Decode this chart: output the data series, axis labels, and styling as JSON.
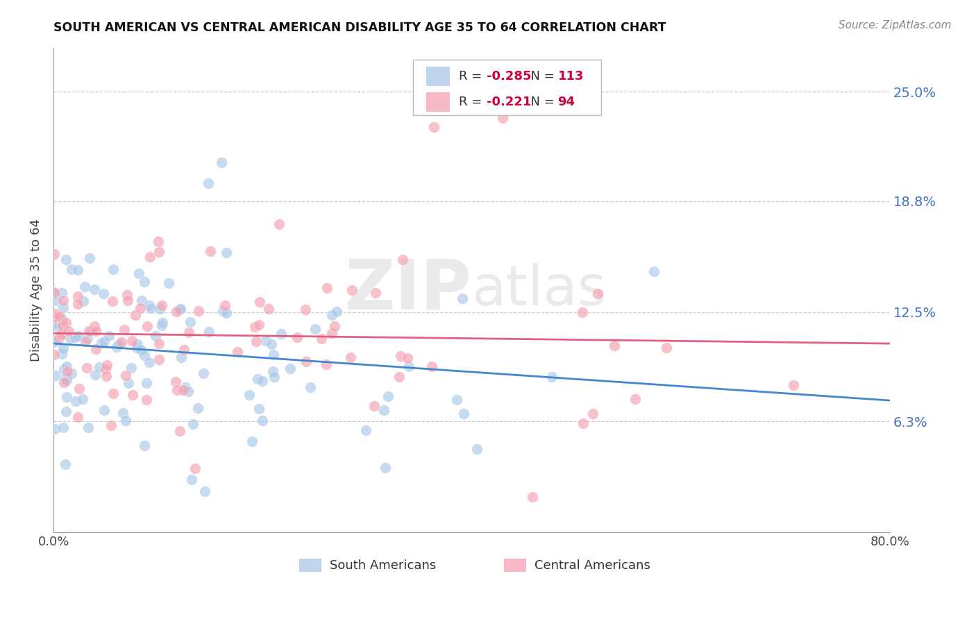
{
  "title": "SOUTH AMERICAN VS CENTRAL AMERICAN DISABILITY AGE 35 TO 64 CORRELATION CHART",
  "source": "Source: ZipAtlas.com",
  "ylabel": "Disability Age 35 to 64",
  "ytick_labels": [
    "6.3%",
    "12.5%",
    "18.8%",
    "25.0%"
  ],
  "ytick_values": [
    0.063,
    0.125,
    0.188,
    0.25
  ],
  "xlim": [
    0.0,
    0.8
  ],
  "ylim": [
    0.0,
    0.275
  ],
  "south_american_color": "#a8c8e8",
  "central_american_color": "#f4a0b0",
  "south_american_line_color": "#4488cc",
  "central_american_line_color": "#e06080",
  "south_american_R": -0.285,
  "south_american_N": 113,
  "central_american_R": -0.221,
  "central_american_N": 94,
  "watermark": "ZIPatlas",
  "legend_label_south": "South Americans",
  "legend_label_central": "Central Americans",
  "sa_intercept": 0.108,
  "sa_slope": -0.075,
  "ca_intercept": 0.115,
  "ca_slope": -0.045
}
